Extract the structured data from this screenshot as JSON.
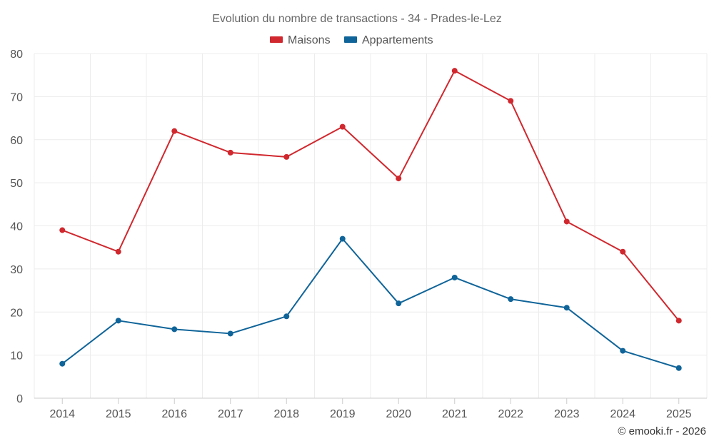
{
  "chart_data": {
    "type": "line",
    "title": "Evolution du nombre de transactions - 34 - Prades-le-Lez",
    "categories": [
      "2014",
      "2015",
      "2016",
      "2017",
      "2018",
      "2019",
      "2020",
      "2021",
      "2022",
      "2023",
      "2024",
      "2025"
    ],
    "series": [
      {
        "name": "Maisons",
        "color": "#d0282e",
        "values": [
          39,
          34,
          62,
          57,
          56,
          63,
          51,
          76,
          69,
          41,
          34,
          18
        ]
      },
      {
        "name": "Appartements",
        "color": "#0f6499",
        "values": [
          8,
          18,
          16,
          15,
          19,
          37,
          22,
          28,
          23,
          21,
          11,
          7
        ]
      }
    ],
    "ylim": [
      0,
      80
    ],
    "yticks": [
      0,
      10,
      20,
      30,
      40,
      50,
      60,
      70,
      80
    ],
    "grid": true,
    "legend_position": "top-center",
    "xlabel": "",
    "ylabel": ""
  },
  "credit": "© emooki.fr - 2026"
}
